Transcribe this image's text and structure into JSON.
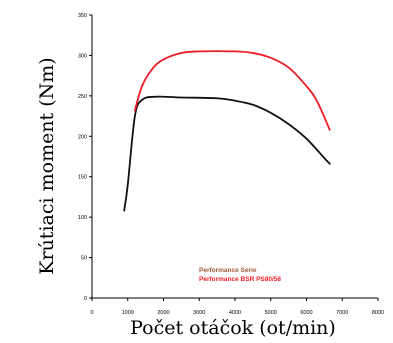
{
  "chart_data": {
    "type": "line",
    "xlabel": "Počet otáčok (ot/min)",
    "ylabel": "Krútiaci moment  (Nm)",
    "xlim": [
      0,
      8000
    ],
    "ylim": [
      0,
      350
    ],
    "x_ticks": [
      "0",
      "1000",
      "2000",
      "3000",
      "4000",
      "5000",
      "6000",
      "7000",
      "8000"
    ],
    "y_ticks": [
      "0",
      "50",
      "100",
      "150",
      "200",
      "250",
      "300",
      "350"
    ],
    "grid": false,
    "legend": "bottom-right",
    "series": [
      {
        "name": "Performance Serie",
        "color": "#111111",
        "x": [
          900,
          1000,
          1200,
          1400,
          1800,
          2500,
          3500,
          4000,
          4500,
          5000,
          5500,
          6000,
          6500,
          6650
        ],
        "y": [
          108,
          140,
          225,
          245,
          249,
          248,
          247,
          244,
          239,
          229,
          215,
          197,
          173,
          166
        ]
      },
      {
        "name": "Performance BSR PS80/58",
        "color": "#ee1c25",
        "x": [
          1200,
          1400,
          1700,
          2000,
          2500,
          3000,
          4000,
          4500,
          5000,
          5500,
          6000,
          6300,
          6650
        ],
        "y": [
          232,
          262,
          284,
          295,
          303,
          305,
          305,
          303,
          297,
          285,
          262,
          243,
          208
        ]
      }
    ]
  }
}
